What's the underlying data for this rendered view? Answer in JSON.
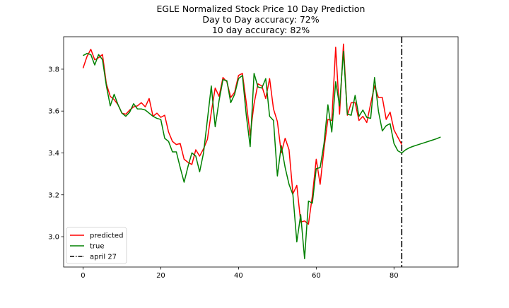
{
  "chart_data": {
    "type": "line",
    "title_lines": [
      "EGLE Normalized Stock Price 10 Day Prediction",
      "Day to Day accuracy: 72%",
      "10 day accuracy: 82%"
    ],
    "xlabel": "",
    "ylabel": "",
    "xlim": [
      -5,
      96.5
    ],
    "ylim": [
      2.855,
      3.955
    ],
    "xticks": [
      0,
      20,
      40,
      60,
      80
    ],
    "yticks": [
      3.0,
      3.2,
      3.4,
      3.6,
      3.8
    ],
    "ytick_labels": [
      "3.0",
      "3.2",
      "3.4",
      "3.6",
      "3.8"
    ],
    "grid": false,
    "legend_position": "lower-left",
    "vline": {
      "x": 82,
      "label": "april 27",
      "color": "#000000",
      "style": "dashdot"
    },
    "series": [
      {
        "name": "predicted",
        "color": "#ff0000",
        "x_start": 0,
        "values": [
          3.805,
          3.86,
          3.895,
          3.845,
          3.855,
          3.87,
          3.73,
          3.67,
          3.655,
          3.63,
          3.59,
          3.585,
          3.605,
          3.62,
          3.625,
          3.64,
          3.62,
          3.66,
          3.575,
          3.59,
          3.57,
          3.58,
          3.5,
          3.455,
          3.44,
          3.445,
          3.37,
          3.355,
          3.345,
          3.415,
          3.385,
          3.42,
          3.465,
          3.595,
          3.71,
          3.67,
          3.76,
          3.74,
          3.665,
          3.69,
          3.77,
          3.78,
          3.64,
          3.485,
          3.635,
          3.73,
          3.72,
          3.66,
          3.755,
          3.61,
          3.55,
          3.4,
          3.47,
          3.415,
          3.205,
          3.245,
          3.07,
          3.075,
          3.06,
          3.195,
          3.37,
          3.25,
          3.42,
          3.56,
          3.555,
          3.905,
          3.585,
          3.92,
          3.58,
          3.64,
          3.64,
          3.555,
          3.575,
          3.545,
          3.635,
          3.72,
          3.665,
          3.665,
          3.56,
          3.595,
          3.51,
          3.475,
          3.44
        ]
      },
      {
        "name": "true",
        "color": "#008000",
        "x_start": 0,
        "values": [
          3.865,
          3.875,
          3.87,
          3.82,
          3.87,
          3.845,
          3.72,
          3.625,
          3.68,
          3.63,
          3.59,
          3.575,
          3.595,
          3.635,
          3.61,
          3.61,
          3.605,
          3.59,
          3.575,
          3.565,
          3.56,
          3.47,
          3.455,
          3.405,
          3.405,
          3.33,
          3.26,
          3.335,
          3.4,
          3.385,
          3.31,
          3.4,
          3.56,
          3.72,
          3.525,
          3.65,
          3.75,
          3.745,
          3.64,
          3.68,
          3.755,
          3.77,
          3.58,
          3.43,
          3.78,
          3.715,
          3.71,
          3.755,
          3.575,
          3.555,
          3.29,
          3.435,
          3.33,
          3.25,
          3.2,
          2.975,
          3.105,
          2.895,
          3.17,
          3.16,
          3.325,
          3.33,
          3.445,
          3.63,
          3.5,
          3.74,
          3.625,
          3.885,
          3.585,
          3.58,
          3.675,
          3.575,
          3.605,
          3.57,
          3.565,
          3.76,
          3.6,
          3.505,
          3.53,
          3.54,
          3.445,
          3.41,
          3.4
        ]
      },
      {
        "name": "",
        "color": "#008000",
        "x_start": 82,
        "values": [
          3.4,
          3.415,
          3.425,
          3.432,
          3.438,
          3.444,
          3.45,
          3.456,
          3.462,
          3.468,
          3.476
        ]
      }
    ]
  }
}
